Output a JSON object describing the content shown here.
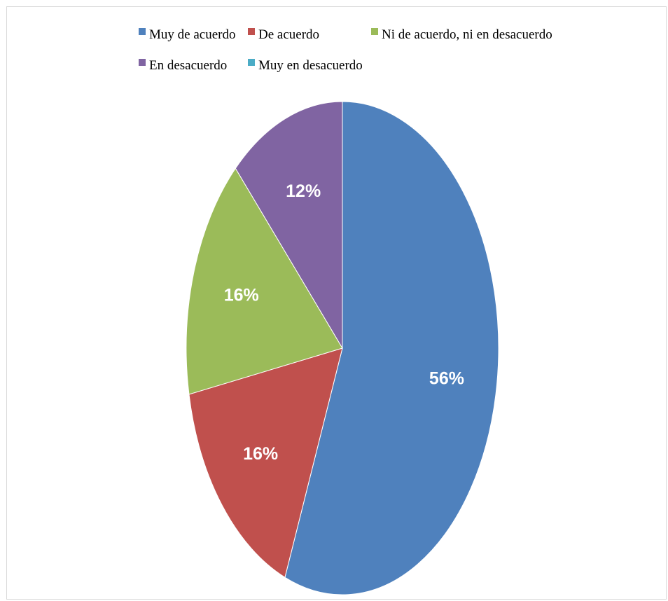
{
  "chart_data": {
    "type": "pie",
    "title": "",
    "categories": [
      "Muy de acuerdo",
      "De acuerdo",
      "Ni de acuerdo, ni en desacuerdo",
      "En desacuerdo",
      "Muy en desacuerdo"
    ],
    "values": [
      56,
      16,
      16,
      12,
      0
    ],
    "data_labels": [
      "56%",
      "16%",
      "16%",
      "12%",
      ""
    ],
    "colors": [
      "#4f81bd",
      "#c0504d",
      "#9bbb59",
      "#8064a2",
      "#4bacc6"
    ],
    "legend_position": "top"
  }
}
